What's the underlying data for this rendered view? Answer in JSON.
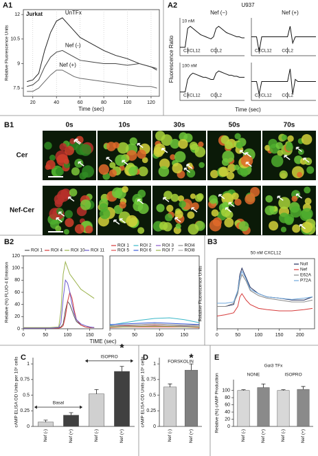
{
  "chart_data": [
    {
      "type": "line",
      "panel": "A1",
      "title": "Jurkat",
      "xlabel": "Time (sec)",
      "ylabel": "Relative Fluorescence Units",
      "x": [
        15,
        20,
        25,
        30,
        35,
        40,
        45,
        50,
        55,
        60,
        70,
        80,
        90,
        100,
        110,
        120,
        125
      ],
      "series": [
        {
          "name": "UnTFx",
          "color": "#222222",
          "values": [
            7.9,
            8.0,
            8.4,
            9.8,
            10.9,
            11.6,
            11.8,
            11.4,
            11.0,
            10.6,
            10.2,
            9.8,
            9.5,
            9.3,
            9.0,
            8.8,
            8.6
          ]
        },
        {
          "name": "Nef (-)",
          "color": "#444444",
          "values": [
            7.6,
            7.7,
            8.0,
            8.8,
            9.4,
            9.7,
            9.8,
            9.6,
            9.4,
            9.2,
            9.1,
            9.0,
            9.0,
            8.9,
            9.0,
            8.8,
            8.7
          ]
        },
        {
          "name": "Nef (+)",
          "color": "#666666",
          "values": [
            7.3,
            7.3,
            7.5,
            7.9,
            8.3,
            8.6,
            8.6,
            8.4,
            8.2,
            8.1,
            8.0,
            7.9,
            7.8,
            7.7,
            7.6,
            7.6,
            7.5
          ]
        }
      ],
      "xlim": [
        12,
        127
      ],
      "ylim": [
        7,
        12.3
      ],
      "xticks": [
        20,
        40,
        60,
        80,
        100,
        120
      ],
      "yticks": [
        7.5,
        9,
        10.5,
        12
      ],
      "grid": true,
      "legend": "inline"
    },
    {
      "type": "small-multiples",
      "panel": "A2",
      "title": "U937",
      "xlabel": "Time (sec)",
      "ylabel": "Fluorescence Ratio",
      "columns": [
        "Nef (−)",
        "Nef (+)"
      ],
      "rows": [
        "10 nM",
        "100 nM"
      ],
      "annotations": [
        {
          "text": "CXCL12",
          "x": 30
        },
        {
          "text": "CCL2",
          "x": 140
        }
      ],
      "x": [
        0,
        10,
        20,
        30,
        40,
        50,
        60,
        70,
        80,
        90,
        100,
        110,
        120,
        130,
        140,
        150,
        160,
        170,
        180,
        190,
        200,
        210,
        220,
        230,
        240,
        250
      ],
      "series": [
        {
          "color": "#111111",
          "values": [
            1.0,
            1.0,
            1.0,
            1.9,
            2.0,
            1.9,
            1.8,
            1.7,
            1.6,
            1.55,
            1.5,
            1.45,
            1.4,
            1.5,
            1.9,
            2.0,
            1.9,
            1.8,
            1.7,
            1.65,
            1.6,
            1.55,
            1.5,
            1.5,
            1.45,
            1.45
          ]
        },
        {
          "color": "#111111",
          "values": [
            1.5,
            1.5,
            1.5,
            0.8,
            1.5,
            1.5,
            1.5,
            1.5,
            1.5,
            1.5,
            1.5,
            1.5,
            1.5,
            1.5,
            1.5,
            2.0,
            1.2,
            1.5,
            1.5,
            1.5,
            1.5,
            1.5,
            1.5,
            1.5,
            1.5,
            1.5
          ]
        },
        {
          "color": "#111111",
          "values": [
            1.0,
            1.0,
            1.0,
            1.6,
            1.8,
            1.9,
            1.85,
            1.8,
            1.75,
            1.7,
            1.7,
            1.65,
            1.6,
            1.6,
            1.9,
            2.0,
            1.95,
            1.9,
            1.85,
            1.8,
            1.8,
            1.75,
            1.75,
            1.7,
            1.7,
            1.7
          ]
        },
        {
          "color": "#111111",
          "values": [
            1.5,
            1.5,
            1.5,
            0.9,
            1.5,
            1.5,
            1.5,
            1.5,
            1.5,
            1.5,
            1.5,
            1.5,
            1.5,
            1.5,
            1.5,
            2.1,
            0.9,
            1.6,
            1.5,
            1.5,
            1.5,
            1.5,
            1.5,
            1.5,
            1.5,
            1.5
          ]
        }
      ],
      "xlim": [
        0,
        250
      ],
      "ylim": [
        0.6,
        2.4
      ]
    },
    {
      "type": "line",
      "panel": "B2",
      "ylabel": "Relative (%) FLUO-4 Emission",
      "x": [
        0,
        20,
        40,
        60,
        80,
        85,
        90,
        95,
        100,
        105,
        110,
        115,
        120,
        130,
        140,
        150,
        160
      ],
      "series": [
        {
          "name": "ROI 1",
          "color": "#555555",
          "values": [
            1,
            1,
            1,
            1,
            2,
            3,
            8,
            30,
            45,
            40,
            30,
            20,
            12,
            6,
            3,
            2,
            2
          ]
        },
        {
          "name": "ROI 4",
          "color": "#d63a3a",
          "values": [
            1,
            1,
            1,
            1,
            1,
            2,
            5,
            20,
            45,
            60,
            50,
            30,
            15,
            6,
            3,
            2,
            2
          ]
        },
        {
          "name": "ROI 10",
          "color": "#9ab24a",
          "values": [
            2,
            2,
            2,
            2,
            3,
            30,
            90,
            110,
            100,
            90,
            85,
            80,
            75,
            65,
            60,
            55,
            50
          ]
        },
        {
          "name": "ROI 11",
          "color": "#6a5acd",
          "values": [
            1,
            1,
            1,
            1,
            2,
            10,
            50,
            80,
            75,
            60,
            40,
            25,
            15,
            8,
            5,
            3,
            2
          ]
        }
      ],
      "xlim": [
        0,
        180
      ],
      "ylim": [
        0,
        120
      ],
      "xticks": [
        0,
        50,
        100,
        150
      ],
      "yticks": [
        0,
        20,
        40,
        60,
        80,
        100,
        120
      ],
      "grid": false,
      "legend": "top"
    },
    {
      "type": "line",
      "xlabel": "TIME (sec)",
      "x": [
        0,
        30,
        60,
        90,
        120,
        150,
        180
      ],
      "series": [
        {
          "name": "ROI 1",
          "color": "#d63a3a",
          "values": [
            4,
            5,
            5,
            6,
            5,
            5,
            4
          ]
        },
        {
          "name": "ROI 2",
          "color": "#3ab8c8",
          "values": [
            6,
            10,
            14,
            17,
            18,
            15,
            10
          ]
        },
        {
          "name": "ROI 3",
          "color": "#8a5ac8",
          "values": [
            3,
            4,
            4,
            5,
            5,
            4,
            4
          ]
        },
        {
          "name": "ROI4",
          "color": "#888888",
          "values": [
            5,
            6,
            7,
            8,
            7,
            6,
            6
          ]
        },
        {
          "name": "ROI 5",
          "color": "#e05050",
          "values": [
            2,
            3,
            3,
            3,
            3,
            3,
            2
          ]
        },
        {
          "name": "ROI 6",
          "color": "#3a5ad8",
          "values": [
            7,
            8,
            9,
            10,
            9,
            8,
            7
          ]
        },
        {
          "name": "ROI 7",
          "color": "#9ab24a",
          "values": [
            3,
            3,
            4,
            4,
            4,
            3,
            3
          ]
        },
        {
          "name": "ROI8",
          "color": "#aaaaaa",
          "values": [
            4,
            4,
            5,
            5,
            5,
            5,
            4
          ]
        }
      ],
      "xlim": [
        0,
        180
      ],
      "ylim": [
        0,
        120
      ],
      "xticks": [
        0,
        50,
        100,
        150
      ],
      "grid": false,
      "legend": "top"
    },
    {
      "type": "line",
      "panel": "B3",
      "title": "50 nM CXCL12",
      "ylabel": "Relative Fluorescence Units",
      "x": [
        0,
        20,
        40,
        50,
        55,
        60,
        70,
        80,
        100,
        120,
        150,
        180,
        210,
        230
      ],
      "series": [
        {
          "name": "Null",
          "color": "#1f2a5a",
          "values": [
            0.35,
            0.35,
            0.38,
            0.6,
            0.85,
            0.95,
            0.8,
            0.65,
            0.55,
            0.5,
            0.48,
            0.45,
            0.45,
            0.5
          ]
        },
        {
          "name": "Nef",
          "color": "#d63a3a",
          "values": [
            0.2,
            0.22,
            0.25,
            0.35,
            0.5,
            0.55,
            0.45,
            0.38,
            0.32,
            0.3,
            0.28,
            0.28,
            0.3,
            0.32
          ]
        },
        {
          "name": "E62A",
          "color": "#888888",
          "values": [
            0.35,
            0.35,
            0.4,
            0.55,
            0.75,
            0.85,
            0.75,
            0.6,
            0.52,
            0.48,
            0.45,
            0.42,
            0.42,
            0.45
          ]
        },
        {
          "name": "P72A",
          "color": "#6fa8dc",
          "values": [
            0.4,
            0.4,
            0.42,
            0.6,
            0.8,
            0.9,
            0.78,
            0.62,
            0.55,
            0.5,
            0.48,
            0.46,
            0.48,
            0.5
          ]
        }
      ],
      "xlim": [
        0,
        235
      ],
      "ylim": [
        0,
        1.1
      ],
      "xticks": [
        0,
        50,
        100,
        150,
        200
      ],
      "grid": false,
      "legend": "upper right"
    },
    {
      "type": "bar",
      "panel": "C",
      "ylabel": "cAMP ELISA OD Units per 10⁵ cells",
      "categories": [
        "Nef (-)",
        "Nef (+)",
        "Nef (-)",
        "Nef (+)"
      ],
      "values": [
        0.07,
        0.18,
        0.52,
        0.88
      ],
      "errors": [
        0.03,
        0.04,
        0.07,
        0.08
      ],
      "colors": [
        "#d0d0d0",
        "#404040",
        "#d0d0d0",
        "#404040"
      ],
      "groups": [
        {
          "text": "Basal",
          "from": 0,
          "to": 1
        },
        {
          "text": "ISOPRO",
          "from": 2,
          "to": 3
        }
      ],
      "group_arrows": true,
      "significance": {
        "text": "*",
        "at": 3
      },
      "ylim": [
        0,
        1.1
      ],
      "yticks": [
        0,
        0.25,
        0.5,
        0.75,
        1
      ]
    },
    {
      "type": "bar",
      "panel": "D",
      "title": "FORSKOLIN",
      "ylabel": "cAMP ELISA OD Units per 10⁵ cells",
      "categories": [
        "Nef (-)",
        "Nef (+)"
      ],
      "values": [
        0.63,
        0.9
      ],
      "errors": [
        0.05,
        0.1
      ],
      "colors": [
        "#d0d0d0",
        "#808080"
      ],
      "significance": {
        "text": "*",
        "at": 1
      },
      "ylim": [
        0,
        1.1
      ],
      "yticks": [
        0,
        0.25,
        0.5,
        0.75,
        1
      ]
    },
    {
      "type": "bar",
      "panel": "E",
      "title": "Gαi3 TFx",
      "ylabel": "Relative (%) cAMP Production",
      "categories": [
        "Nef (-)",
        "Nef (+)",
        "Nef (-)",
        "Nef (+)"
      ],
      "values": [
        100,
        108,
        100,
        103
      ],
      "errors": [
        2,
        10,
        2,
        8
      ],
      "colors": [
        "#d8d8d8",
        "#8a8a8a",
        "#d8d8d8",
        "#8a8a8a"
      ],
      "groups": [
        {
          "text": "NONE",
          "from": 0,
          "to": 1
        },
        {
          "text": "ISOPRO",
          "from": 2,
          "to": 3
        }
      ],
      "group_arrows": false,
      "ylim": [
        0,
        130
      ],
      "yticks": [
        0,
        20,
        40,
        60,
        80,
        100
      ]
    }
  ],
  "images": {
    "panel": "B1",
    "times": [
      "0s",
      "10s",
      "30s",
      "50s",
      "70s"
    ],
    "rows": [
      "Cer",
      "Nef-Cer"
    ]
  }
}
